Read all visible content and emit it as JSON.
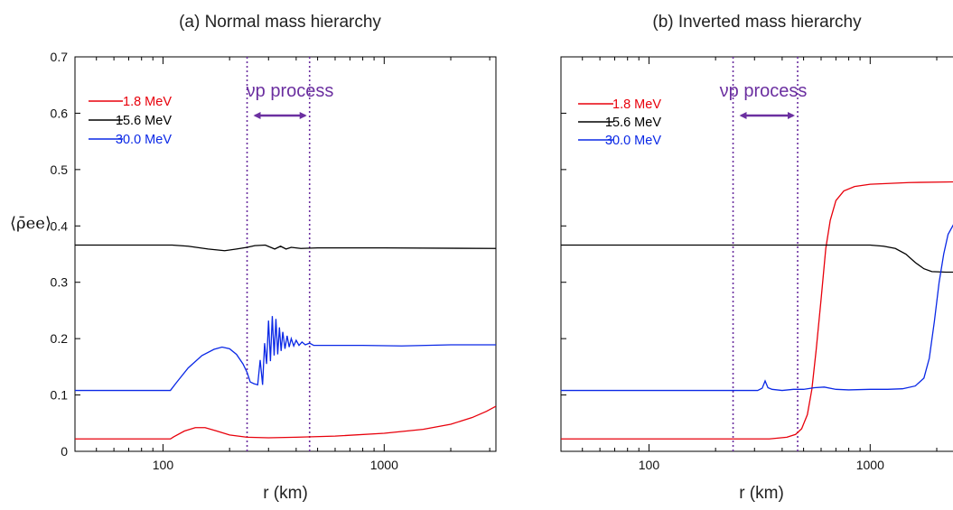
{
  "chart_data": [
    {
      "type": "line",
      "title": "(a) Normal mass hierarchy",
      "xlabel": "r (km)",
      "ylabel": "⟨ρ̄ee⟩",
      "xscale": "log",
      "xlim": [
        40,
        3200
      ],
      "ylim": [
        0,
        0.7
      ],
      "xticks": [
        100,
        1000
      ],
      "xtick_labels": [
        "100",
        "1000"
      ],
      "yticks": [
        0,
        0.1,
        0.2,
        0.3,
        0.4,
        0.5,
        0.6,
        0.7
      ],
      "ytick_labels": [
        "0",
        "0.1",
        "0.2",
        "0.3",
        "0.4",
        "0.5",
        "0.6",
        "0.7"
      ],
      "legend_position": "top-left",
      "annotation": {
        "text": "νp process",
        "r_range": [
          240,
          460
        ]
      },
      "series": [
        {
          "name": "1.8 MeV",
          "color": "#e8000b",
          "points": [
            [
              40,
              0.022
            ],
            [
              108,
              0.022
            ],
            [
              112,
              0.026
            ],
            [
              125,
              0.036
            ],
            [
              140,
              0.042
            ],
            [
              155,
              0.042
            ],
            [
              175,
              0.036
            ],
            [
              200,
              0.029
            ],
            [
              240,
              0.025
            ],
            [
              300,
              0.024
            ],
            [
              400,
              0.025
            ],
            [
              600,
              0.027
            ],
            [
              1000,
              0.032
            ],
            [
              1500,
              0.039
            ],
            [
              2000,
              0.048
            ],
            [
              2500,
              0.06
            ],
            [
              2900,
              0.071
            ],
            [
              3200,
              0.08
            ]
          ]
        },
        {
          "name": "15.6 MeV",
          "color": "#000000",
          "points": [
            [
              40,
              0.366
            ],
            [
              110,
              0.366
            ],
            [
              130,
              0.364
            ],
            [
              160,
              0.359
            ],
            [
              190,
              0.356
            ],
            [
              215,
              0.359
            ],
            [
              240,
              0.362
            ],
            [
              260,
              0.365
            ],
            [
              290,
              0.366
            ],
            [
              320,
              0.359
            ],
            [
              340,
              0.364
            ],
            [
              360,
              0.359
            ],
            [
              380,
              0.362
            ],
            [
              420,
              0.36
            ],
            [
              500,
              0.361
            ],
            [
              1000,
              0.361
            ],
            [
              3200,
              0.36
            ]
          ]
        },
        {
          "name": "30.0 MeV",
          "color": "#0a28e6",
          "points": [
            [
              40,
              0.108
            ],
            [
              108,
              0.108
            ],
            [
              115,
              0.122
            ],
            [
              130,
              0.148
            ],
            [
              150,
              0.17
            ],
            [
              170,
              0.181
            ],
            [
              185,
              0.185
            ],
            [
              200,
              0.182
            ],
            [
              215,
              0.172
            ],
            [
              230,
              0.155
            ],
            [
              240,
              0.14
            ],
            [
              248,
              0.123
            ],
            [
              258,
              0.12
            ],
            [
              268,
              0.118
            ],
            [
              275,
              0.162
            ],
            [
              282,
              0.118
            ],
            [
              288,
              0.192
            ],
            [
              294,
              0.155
            ],
            [
              300,
              0.232
            ],
            [
              306,
              0.16
            ],
            [
              312,
              0.24
            ],
            [
              318,
              0.17
            ],
            [
              324,
              0.235
            ],
            [
              330,
              0.172
            ],
            [
              336,
              0.22
            ],
            [
              342,
              0.178
            ],
            [
              348,
              0.212
            ],
            [
              356,
              0.182
            ],
            [
              364,
              0.205
            ],
            [
              372,
              0.185
            ],
            [
              380,
              0.2
            ],
            [
              390,
              0.187
            ],
            [
              400,
              0.197
            ],
            [
              412,
              0.188
            ],
            [
              425,
              0.194
            ],
            [
              440,
              0.189
            ],
            [
              460,
              0.192
            ],
            [
              480,
              0.188
            ],
            [
              500,
              0.188
            ],
            [
              800,
              0.188
            ],
            [
              1200,
              0.187
            ],
            [
              2000,
              0.189
            ],
            [
              3200,
              0.189
            ]
          ]
        }
      ]
    },
    {
      "type": "line",
      "title": "(b) Inverted mass hierarchy",
      "xlabel": "r (km)",
      "xscale": "log",
      "xlim": [
        40,
        3200
      ],
      "ylim": [
        0,
        0.7
      ],
      "xticks": [
        100,
        1000
      ],
      "xtick_labels": [
        "100",
        "1000"
      ],
      "legend_position": "top-left",
      "annotation": {
        "text": "νp process",
        "r_range": [
          240,
          470
        ]
      },
      "series": [
        {
          "name": "1.8 MeV",
          "color": "#e8000b",
          "points": [
            [
              40,
              0.022
            ],
            [
              350,
              0.022
            ],
            [
              420,
              0.025
            ],
            [
              460,
              0.03
            ],
            [
              490,
              0.04
            ],
            [
              520,
              0.065
            ],
            [
              545,
              0.11
            ],
            [
              570,
              0.18
            ],
            [
              600,
              0.27
            ],
            [
              630,
              0.36
            ],
            [
              660,
              0.41
            ],
            [
              700,
              0.445
            ],
            [
              760,
              0.462
            ],
            [
              850,
              0.47
            ],
            [
              1000,
              0.474
            ],
            [
              1500,
              0.477
            ],
            [
              2200,
              0.478
            ],
            [
              3200,
              0.479
            ]
          ]
        },
        {
          "name": "15.6 MeV",
          "color": "#000000",
          "points": [
            [
              40,
              0.366
            ],
            [
              1000,
              0.366
            ],
            [
              1150,
              0.364
            ],
            [
              1300,
              0.36
            ],
            [
              1450,
              0.35
            ],
            [
              1600,
              0.335
            ],
            [
              1750,
              0.324
            ],
            [
              1900,
              0.319
            ],
            [
              2200,
              0.318
            ],
            [
              3200,
              0.318
            ]
          ]
        },
        {
          "name": "30.0 MeV",
          "color": "#0a28e6",
          "points": [
            [
              40,
              0.108
            ],
            [
              310,
              0.108
            ],
            [
              325,
              0.112
            ],
            [
              335,
              0.125
            ],
            [
              345,
              0.113
            ],
            [
              360,
              0.11
            ],
            [
              400,
              0.108
            ],
            [
              450,
              0.11
            ],
            [
              500,
              0.11
            ],
            [
              560,
              0.113
            ],
            [
              620,
              0.114
            ],
            [
              700,
              0.11
            ],
            [
              800,
              0.109
            ],
            [
              1000,
              0.11
            ],
            [
              1200,
              0.11
            ],
            [
              1400,
              0.111
            ],
            [
              1600,
              0.116
            ],
            [
              1750,
              0.13
            ],
            [
              1850,
              0.165
            ],
            [
              1950,
              0.23
            ],
            [
              2050,
              0.3
            ],
            [
              2150,
              0.35
            ],
            [
              2250,
              0.385
            ],
            [
              2400,
              0.405
            ],
            [
              2600,
              0.415
            ],
            [
              2800,
              0.42
            ],
            [
              3200,
              0.423
            ]
          ]
        }
      ]
    }
  ]
}
